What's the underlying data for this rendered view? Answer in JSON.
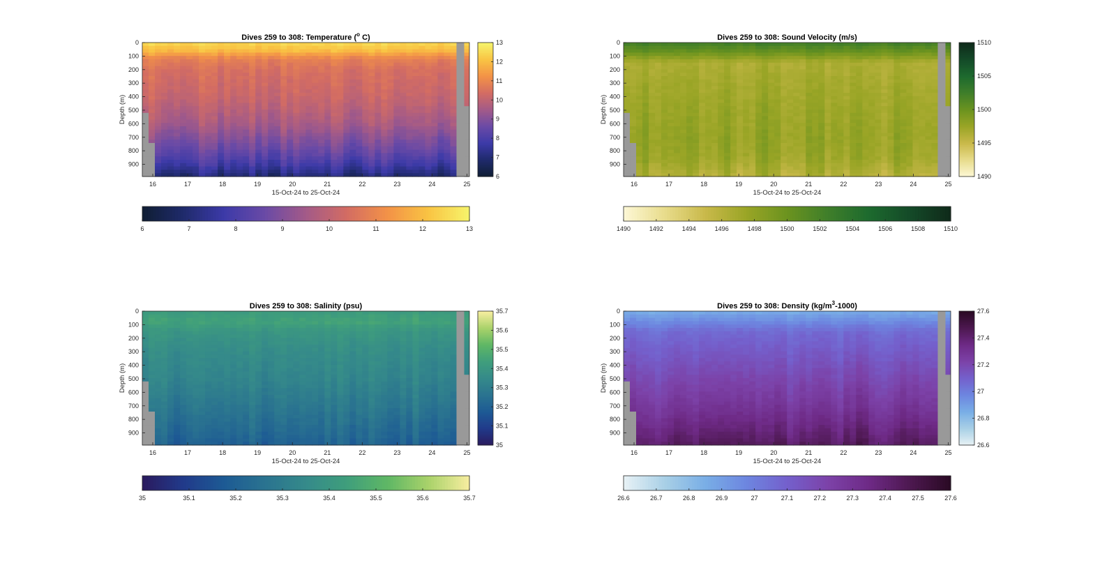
{
  "figure": {
    "background": "#ffffff",
    "nodata_color": "#999999"
  },
  "chart_data": [
    {
      "type": "heatmap",
      "id": "temperature",
      "title_pre": "Dives 259 to 308: Temperature (",
      "title_sup": "o",
      "title_post": " C)",
      "xlabel": "15-Oct-24 to 25-Oct-24",
      "ylabel": "Depth (m)",
      "x_ticks": [
        "16",
        "17",
        "18",
        "19",
        "20",
        "21",
        "22",
        "23",
        "24",
        "25"
      ],
      "y_ticks": [
        "0",
        "100",
        "200",
        "300",
        "400",
        "500",
        "600",
        "700",
        "800",
        "900"
      ],
      "xlim": [
        15.7,
        25.07
      ],
      "ylim": [
        0,
        990
      ],
      "colormap": [
        "#0f1e33",
        "#1f2a6b",
        "#3c3aa8",
        "#6a4aa6",
        "#a35a88",
        "#d36c63",
        "#f39247",
        "#f9c443",
        "#f6f46b"
      ],
      "clim": [
        6,
        13
      ],
      "cbar_ticks": [
        "6",
        "7",
        "8",
        "9",
        "10",
        "11",
        "12",
        "13"
      ],
      "hbar_ticks": [
        "6",
        "7",
        "8",
        "9",
        "10",
        "11",
        "12",
        "13"
      ],
      "profile": [
        {
          "d": 0,
          "v": 12.5
        },
        {
          "d": 60,
          "v": 12.0
        },
        {
          "d": 120,
          "v": 10.9
        },
        {
          "d": 200,
          "v": 10.5
        },
        {
          "d": 400,
          "v": 10.2
        },
        {
          "d": 600,
          "v": 9.6
        },
        {
          "d": 800,
          "v": 8.6
        },
        {
          "d": 900,
          "v": 7.9
        },
        {
          "d": 990,
          "v": 7.0
        }
      ]
    },
    {
      "type": "heatmap",
      "id": "sound_velocity",
      "title_pre": "Dives 259 to 308: Sound Velocity (m/s)",
      "title_sup": "",
      "title_post": "",
      "xlabel": "15-Oct-24 to 25-Oct-24",
      "ylabel": "Depth (m)",
      "x_ticks": [
        "16",
        "17",
        "18",
        "19",
        "20",
        "21",
        "22",
        "23",
        "24",
        "25"
      ],
      "y_ticks": [
        "0",
        "100",
        "200",
        "300",
        "400",
        "500",
        "600",
        "700",
        "800",
        "900"
      ],
      "xlim": [
        15.7,
        25.07
      ],
      "ylim": [
        0,
        990
      ],
      "colormap": [
        "#fdf8d6",
        "#e8dc8c",
        "#c9b94a",
        "#9aa526",
        "#6b931f",
        "#3f7e2a",
        "#1d6a2e",
        "#144a28",
        "#0f2a1a"
      ],
      "clim": [
        1490,
        1510
      ],
      "cbar_ticks": [
        "1490",
        "1495",
        "1500",
        "1505",
        "1510"
      ],
      "hbar_ticks": [
        "1490",
        "1492",
        "1494",
        "1496",
        "1498",
        "1500",
        "1502",
        "1504",
        "1506",
        "1508",
        "1510"
      ],
      "profile": [
        {
          "d": 0,
          "v": 1502.5
        },
        {
          "d": 60,
          "v": 1500.5
        },
        {
          "d": 150,
          "v": 1496.5
        },
        {
          "d": 300,
          "v": 1497.0
        },
        {
          "d": 500,
          "v": 1497.5
        },
        {
          "d": 700,
          "v": 1497.8
        },
        {
          "d": 850,
          "v": 1497.5
        },
        {
          "d": 990,
          "v": 1496.2
        }
      ]
    },
    {
      "type": "heatmap",
      "id": "salinity",
      "title_pre": "Dives 259 to 308: Salinity (psu)",
      "title_sup": "",
      "title_post": "",
      "xlabel": "15-Oct-24 to 25-Oct-24",
      "ylabel": "Depth (m)",
      "x_ticks": [
        "16",
        "17",
        "18",
        "19",
        "20",
        "21",
        "22",
        "23",
        "24",
        "25"
      ],
      "y_ticks": [
        "0",
        "100",
        "200",
        "300",
        "400",
        "500",
        "600",
        "700",
        "800",
        "900"
      ],
      "xlim": [
        15.7,
        25.07
      ],
      "ylim": [
        0,
        990
      ],
      "colormap": [
        "#2a1a5e",
        "#213a8a",
        "#1d5a94",
        "#2a7390",
        "#358a8a",
        "#3f9e7c",
        "#5fb765",
        "#a9d26a",
        "#f8eea0"
      ],
      "clim": [
        35,
        35.7
      ],
      "cbar_ticks": [
        "35",
        "35.1",
        "35.2",
        "35.3",
        "35.4",
        "35.5",
        "35.6",
        "35.7"
      ],
      "hbar_ticks": [
        "35",
        "35.1",
        "35.2",
        "35.3",
        "35.4",
        "35.5",
        "35.6",
        "35.7"
      ],
      "profile": [
        {
          "d": 0,
          "v": 35.42
        },
        {
          "d": 80,
          "v": 35.45
        },
        {
          "d": 150,
          "v": 35.4
        },
        {
          "d": 300,
          "v": 35.36
        },
        {
          "d": 500,
          "v": 35.33
        },
        {
          "d": 700,
          "v": 35.28
        },
        {
          "d": 850,
          "v": 35.24
        },
        {
          "d": 990,
          "v": 35.2
        }
      ]
    },
    {
      "type": "heatmap",
      "id": "density",
      "title_pre": "Dives 259 to 308: Density (kg/m",
      "title_sup": "3",
      "title_post": "-1000)",
      "xlabel": "15-Oct-24 to 25-Oct-24",
      "ylabel": "Depth (m)",
      "x_ticks": [
        "16",
        "17",
        "18",
        "19",
        "20",
        "21",
        "22",
        "23",
        "24",
        "25"
      ],
      "y_ticks": [
        "0",
        "100",
        "200",
        "300",
        "400",
        "500",
        "600",
        "700",
        "800",
        "900"
      ],
      "xlim": [
        15.7,
        25.07
      ],
      "ylim": [
        0,
        990
      ],
      "colormap": [
        "#e8f2f5",
        "#a9d0e6",
        "#79aee6",
        "#6d86e0",
        "#7460cc",
        "#7c42a8",
        "#6e2a86",
        "#4d1850",
        "#2a0a24"
      ],
      "clim": [
        26.6,
        27.6
      ],
      "cbar_ticks": [
        "26.6",
        "26.8",
        "27",
        "27.2",
        "27.4",
        "27.6"
      ],
      "hbar_ticks": [
        "26.6",
        "26.7",
        "26.8",
        "26.9",
        "27",
        "27.1",
        "27.2",
        "27.3",
        "27.4",
        "27.5",
        "27.6"
      ],
      "profile": [
        {
          "d": 0,
          "v": 26.85
        },
        {
          "d": 70,
          "v": 26.95
        },
        {
          "d": 150,
          "v": 27.06
        },
        {
          "d": 300,
          "v": 27.12
        },
        {
          "d": 500,
          "v": 27.2
        },
        {
          "d": 700,
          "v": 27.28
        },
        {
          "d": 850,
          "v": 27.36
        },
        {
          "d": 990,
          "v": 27.44
        }
      ]
    }
  ]
}
